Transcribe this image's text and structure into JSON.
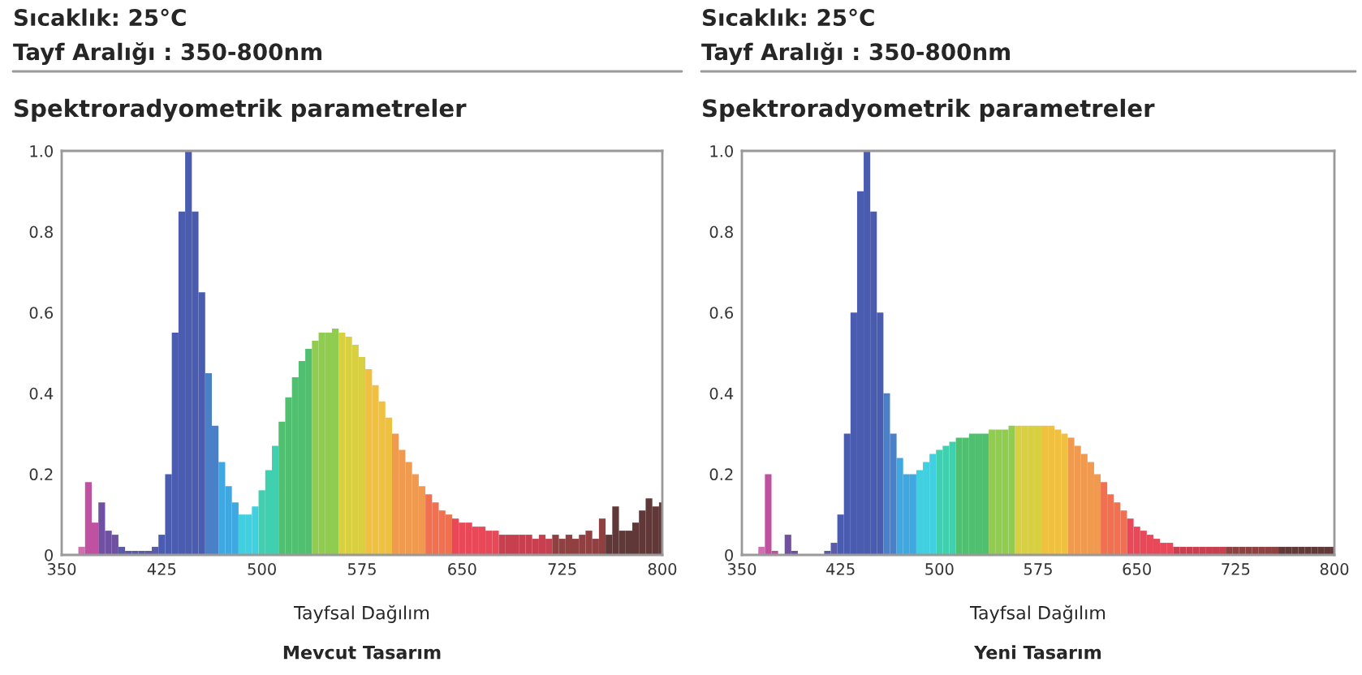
{
  "chart_data": [
    {
      "type": "bar",
      "title": "Sıcaklık: 25°C",
      "subtitle": "Tayf Aralığı : 350-800nm",
      "xlabel": "Tayfsal Dağılım",
      "annotations": [
        "Spektroradyometrik parametreler",
        "Mevcut Tasarım"
      ],
      "x": [
        350,
        355,
        360,
        365,
        370,
        375,
        380,
        385,
        390,
        395,
        400,
        405,
        410,
        415,
        420,
        425,
        430,
        435,
        440,
        445,
        450,
        455,
        460,
        465,
        470,
        475,
        480,
        485,
        490,
        495,
        500,
        505,
        510,
        515,
        520,
        525,
        530,
        535,
        540,
        545,
        550,
        555,
        560,
        565,
        570,
        575,
        580,
        585,
        590,
        595,
        600,
        605,
        610,
        615,
        620,
        625,
        630,
        635,
        640,
        645,
        650,
        655,
        660,
        665,
        670,
        675,
        680,
        685,
        690,
        695,
        700,
        705,
        710,
        715,
        720,
        725,
        730,
        735,
        740,
        745,
        750,
        755,
        760,
        765,
        770,
        775,
        780,
        785,
        790,
        795,
        800
      ],
      "values": [
        0,
        0,
        0,
        0.02,
        0.18,
        0.08,
        0.13,
        0.06,
        0.05,
        0.02,
        0.01,
        0.01,
        0.01,
        0.01,
        0.02,
        0.05,
        0.2,
        0.55,
        0.85,
        1.0,
        0.85,
        0.65,
        0.45,
        0.32,
        0.23,
        0.17,
        0.13,
        0.1,
        0.1,
        0.12,
        0.16,
        0.21,
        0.27,
        0.33,
        0.39,
        0.44,
        0.48,
        0.51,
        0.53,
        0.55,
        0.55,
        0.56,
        0.55,
        0.54,
        0.52,
        0.49,
        0.46,
        0.42,
        0.38,
        0.34,
        0.3,
        0.26,
        0.23,
        0.2,
        0.17,
        0.15,
        0.13,
        0.11,
        0.1,
        0.09,
        0.08,
        0.08,
        0.07,
        0.07,
        0.06,
        0.06,
        0.05,
        0.05,
        0.05,
        0.05,
        0.05,
        0.04,
        0.05,
        0.04,
        0.05,
        0.04,
        0.05,
        0.04,
        0.05,
        0.06,
        0.04,
        0.09,
        0.05,
        0.12,
        0.06,
        0.06,
        0.08,
        0.11,
        0.14,
        0.12,
        0.13
      ],
      "colors": [
        "#d070b0",
        "#d070b0",
        "#d070b0",
        "#d070b0",
        "#c050a0",
        "#c050a0",
        "#7050a0",
        "#7050a0",
        "#7050a0",
        "#5a5aa8",
        "#5a5aa8",
        "#5a5aa8",
        "#5a5aa8",
        "#5a5aa8",
        "#5a5aa8",
        "#4a5cb0",
        "#4a5cb0",
        "#4a5cb0",
        "#4a5cb0",
        "#4a5cb0",
        "#4a5cb0",
        "#4a5cb0",
        "#4a80c8",
        "#4a80c8",
        "#40a8e0",
        "#40a8e0",
        "#40a8e0",
        "#40d0e0",
        "#40d0e0",
        "#40d0e0",
        "#40d0b0",
        "#40d0b0",
        "#40d0b0",
        "#50c070",
        "#50c070",
        "#50c070",
        "#50c070",
        "#50c070",
        "#90cc50",
        "#90cc50",
        "#90cc50",
        "#90cc50",
        "#d8d040",
        "#d8d040",
        "#d8d040",
        "#d8d040",
        "#f0c040",
        "#f0c040",
        "#f0c040",
        "#f0c040",
        "#f09a50",
        "#f09a50",
        "#f09a50",
        "#f09a50",
        "#f09a50",
        "#f07050",
        "#f07050",
        "#f07050",
        "#f07050",
        "#e84858",
        "#e84858",
        "#e84858",
        "#e84858",
        "#e84858",
        "#e84858",
        "#e84858",
        "#c84050",
        "#c84050",
        "#c84050",
        "#c84050",
        "#c84050",
        "#c84050",
        "#c84050",
        "#c84050",
        "#904040",
        "#904040",
        "#904040",
        "#904040",
        "#904040",
        "#904040",
        "#904040",
        "#904040",
        "#603838",
        "#603838",
        "#603838",
        "#603838",
        "#603838",
        "#603838",
        "#603838",
        "#603838",
        "#603838"
      ],
      "xlim": [
        350,
        800
      ],
      "xticks": [
        350,
        425,
        500,
        575,
        650,
        725,
        800
      ],
      "ylim": [
        0,
        1
      ],
      "yticks": [
        0,
        0.2,
        0.4,
        0.6,
        0.8,
        {
          "value": 1,
          "label": "1.0"
        }
      ],
      "grid": false,
      "legend": false
    },
    {
      "type": "bar",
      "title": "Sıcaklık: 25°C",
      "subtitle": "Tayf Aralığı : 350-800nm",
      "xlabel": "Tayfsal Dağılım",
      "annotations": [
        "Spektroradyometrik parametreler",
        "Yeni Tasarım"
      ],
      "x": [
        350,
        355,
        360,
        365,
        370,
        375,
        380,
        385,
        390,
        395,
        400,
        405,
        410,
        415,
        420,
        425,
        430,
        435,
        440,
        445,
        450,
        455,
        460,
        465,
        470,
        475,
        480,
        485,
        490,
        495,
        500,
        505,
        510,
        515,
        520,
        525,
        530,
        535,
        540,
        545,
        550,
        555,
        560,
        565,
        570,
        575,
        580,
        585,
        590,
        595,
        600,
        605,
        610,
        615,
        620,
        625,
        630,
        635,
        640,
        645,
        650,
        655,
        660,
        665,
        670,
        675,
        680,
        685,
        690,
        695,
        700,
        705,
        710,
        715,
        720,
        725,
        730,
        735,
        740,
        745,
        750,
        755,
        760,
        765,
        770,
        775,
        780,
        785,
        790,
        795,
        800
      ],
      "values": [
        0,
        0,
        0,
        0.02,
        0.2,
        0.01,
        0,
        0.05,
        0.01,
        0,
        0,
        0,
        0,
        0.01,
        0.03,
        0.1,
        0.3,
        0.6,
        0.9,
        1.0,
        0.85,
        0.6,
        0.4,
        0.3,
        0.24,
        0.2,
        0.2,
        0.21,
        0.23,
        0.25,
        0.26,
        0.27,
        0.28,
        0.29,
        0.29,
        0.3,
        0.3,
        0.3,
        0.31,
        0.31,
        0.31,
        0.32,
        0.32,
        0.32,
        0.32,
        0.32,
        0.32,
        0.32,
        0.31,
        0.3,
        0.29,
        0.27,
        0.25,
        0.23,
        0.2,
        0.18,
        0.15,
        0.13,
        0.11,
        0.09,
        0.07,
        0.06,
        0.05,
        0.04,
        0.03,
        0.03,
        0.02,
        0.02,
        0.02,
        0.02,
        0.02,
        0.02,
        0.02,
        0.02,
        0.02,
        0.02,
        0.02,
        0.02,
        0.02,
        0.02,
        0.02,
        0.02,
        0.02,
        0.02,
        0.02,
        0.02,
        0.02,
        0.02,
        0.02,
        0.02,
        0.02
      ],
      "colors": [
        "#d070b0",
        "#d070b0",
        "#d070b0",
        "#d070b0",
        "#c050a0",
        "#c050a0",
        "#7050a0",
        "#7050a0",
        "#7050a0",
        "#5a5aa8",
        "#5a5aa8",
        "#5a5aa8",
        "#5a5aa8",
        "#5a5aa8",
        "#5a5aa8",
        "#4a5cb0",
        "#4a5cb0",
        "#4a5cb0",
        "#4a5cb0",
        "#4a5cb0",
        "#4a5cb0",
        "#4a5cb0",
        "#4a80c8",
        "#4a80c8",
        "#40a8e0",
        "#40a8e0",
        "#40a8e0",
        "#40d0e0",
        "#40d0e0",
        "#40d0e0",
        "#40d0b0",
        "#40d0b0",
        "#40d0b0",
        "#50c070",
        "#50c070",
        "#50c070",
        "#50c070",
        "#50c070",
        "#90cc50",
        "#90cc50",
        "#90cc50",
        "#90cc50",
        "#d8d040",
        "#d8d040",
        "#d8d040",
        "#d8d040",
        "#f0c040",
        "#f0c040",
        "#f0c040",
        "#f0c040",
        "#f09a50",
        "#f09a50",
        "#f09a50",
        "#f09a50",
        "#f09a50",
        "#f07050",
        "#f07050",
        "#f07050",
        "#f07050",
        "#e84858",
        "#e84858",
        "#e84858",
        "#e84858",
        "#e84858",
        "#e84858",
        "#e84858",
        "#c84050",
        "#c84050",
        "#c84050",
        "#c84050",
        "#c84050",
        "#c84050",
        "#c84050",
        "#c84050",
        "#904040",
        "#904040",
        "#904040",
        "#904040",
        "#904040",
        "#904040",
        "#904040",
        "#904040",
        "#603838",
        "#603838",
        "#603838",
        "#603838",
        "#603838",
        "#603838",
        "#603838",
        "#603838",
        "#603838"
      ],
      "xlim": [
        350,
        800
      ],
      "xticks": [
        350,
        425,
        500,
        575,
        650,
        725,
        800
      ],
      "ylim": [
        0,
        1
      ],
      "yticks": [
        0,
        0.2,
        0.4,
        0.6,
        0.8,
        {
          "value": 1,
          "label": "1.0"
        }
      ],
      "grid": false,
      "legend": false
    }
  ]
}
